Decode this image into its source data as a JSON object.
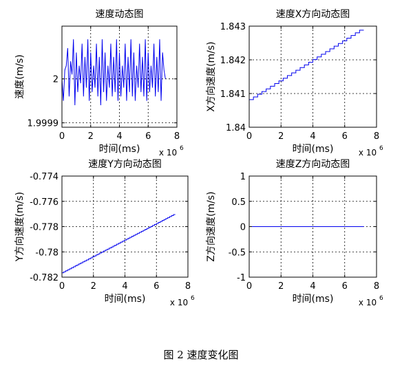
{
  "caption": "图 2  速度变化图",
  "chart_data": [
    {
      "type": "line",
      "title": "速度动态图",
      "xlabel": "时间(ms)",
      "ylabel": "速度(m/s)",
      "x_exponent": "x 10",
      "x_exponent_power": "6",
      "xlim": [
        0,
        8
      ],
      "ylim": [
        1.99989,
        2.00012
      ],
      "xticks": [
        0,
        2,
        4,
        6,
        8
      ],
      "xtick_labels": [
        "0",
        "2",
        "4",
        "6",
        "8"
      ],
      "yticks": [
        1.9999,
        2.0
      ],
      "ytick_labels": [
        "1.9999",
        "2"
      ],
      "grid": true,
      "color": "#0000ee",
      "series": [
        {
          "x": [
            0.0,
            0.1,
            0.2,
            0.3,
            0.4,
            0.5,
            0.6,
            0.7,
            0.8,
            0.9,
            1.0,
            1.1,
            1.2,
            1.3,
            1.4,
            1.5,
            1.6,
            1.7,
            1.8,
            1.9,
            2.0,
            2.1,
            2.2,
            2.3,
            2.4,
            2.5,
            2.6,
            2.7,
            2.8,
            2.9,
            3.0,
            3.1,
            3.2,
            3.3,
            3.4,
            3.5,
            3.6,
            3.7,
            3.8,
            3.9,
            4.0,
            4.1,
            4.2,
            4.3,
            4.4,
            4.5,
            4.6,
            4.7,
            4.8,
            4.9,
            5.0,
            5.1,
            5.2,
            5.3,
            5.4,
            5.5,
            5.6,
            5.7,
            5.8,
            5.9,
            6.0,
            6.1,
            6.2,
            6.3,
            6.4,
            6.5,
            6.6,
            6.7,
            6.8,
            6.9,
            7.0,
            7.1,
            7.2
          ],
          "y": [
            2.0,
            1.99995,
            2.00002,
            2.00003,
            2.00007,
            1.99996,
            2.00004,
            2.00001,
            2.00009,
            1.99994,
            2.00006,
            1.99997,
            2.00003,
            1.99999,
            2.00008,
            1.99996,
            2.00005,
            1.99998,
            2.00009,
            1.99995,
            2.00006,
            1.99997,
            2.00003,
            1.99998,
            2.00008,
            1.99996,
            2.00005,
            1.99994,
            2.00009,
            1.99997,
            2.00006,
            1.99995,
            2.00003,
            1.99998,
            2.00008,
            1.99996,
            2.00005,
            1.99997,
            2.00009,
            1.99995,
            2.00006,
            1.99996,
            2.00003,
            1.99998,
            2.00008,
            1.99995,
            2.00005,
            1.99997,
            2.00009,
            1.99996,
            2.00006,
            1.99995,
            2.00003,
            1.99998,
            2.00008,
            1.99997,
            2.00005,
            1.99996,
            2.00009,
            1.99995,
            2.00006,
            1.99997,
            2.00003,
            1.99998,
            2.00008,
            1.99996,
            2.00005,
            1.99997,
            2.00009,
            1.99995,
            2.00006,
            2.00002,
            2.0
          ]
        }
      ]
    },
    {
      "type": "line",
      "title": "速度X方向动态图",
      "xlabel": "时间(ms)",
      "ylabel": "X方向速度(m/s)",
      "x_exponent": "x 10",
      "x_exponent_power": "6",
      "xlim": [
        0,
        8
      ],
      "ylim": [
        1.84,
        1.843
      ],
      "xticks": [
        0,
        2,
        4,
        6,
        8
      ],
      "xtick_labels": [
        "0",
        "2",
        "4",
        "6",
        "8"
      ],
      "yticks": [
        1.84,
        1.841,
        1.842,
        1.843
      ],
      "ytick_labels": [
        "1.84",
        "1.841",
        "1.842",
        "1.843"
      ],
      "grid": true,
      "color": "#0000ee",
      "series": [
        {
          "x": [
            0.0,
            7.2
          ],
          "y": [
            1.84082,
            1.84288
          ],
          "steps": 27
        }
      ]
    },
    {
      "type": "line",
      "title": "速度Y方向动态图",
      "xlabel": "时间(ms)",
      "ylabel": "Y方向速度(m/s)",
      "x_exponent": "x 10",
      "x_exponent_power": "6",
      "xlim": [
        0,
        8
      ],
      "ylim": [
        -0.782,
        -0.774
      ],
      "xticks": [
        0,
        2,
        4,
        6,
        8
      ],
      "xtick_labels": [
        "0",
        "2",
        "4",
        "6",
        "8"
      ],
      "yticks": [
        -0.782,
        -0.78,
        -0.778,
        -0.776,
        -0.774
      ],
      "ytick_labels": [
        "-0.782",
        "-0.78",
        "-0.778",
        "-0.776",
        "-0.774"
      ],
      "grid": true,
      "color": "#0000ee",
      "series": [
        {
          "x": [
            0.0,
            7.2
          ],
          "y": [
            -0.78165,
            -0.77705
          ],
          "steps": 60
        }
      ]
    },
    {
      "type": "line",
      "title": "速度Z方向动态图",
      "xlabel": "时间(ms)",
      "ylabel": "Z方向速度(m/s)",
      "x_exponent": "x 10",
      "x_exponent_power": "6",
      "xlim": [
        0,
        8
      ],
      "ylim": [
        -1,
        1
      ],
      "xticks": [
        0,
        2,
        4,
        6,
        8
      ],
      "xtick_labels": [
        "0",
        "2",
        "4",
        "6",
        "8"
      ],
      "yticks": [
        -1,
        -0.5,
        0,
        0.5,
        1
      ],
      "ytick_labels": [
        "-1",
        "-0.5",
        "0",
        "0.5",
        "1"
      ],
      "grid": true,
      "color": "#0000ee",
      "series": [
        {
          "x": [
            0.0,
            7.2
          ],
          "y": [
            0.0,
            0.0
          ],
          "steps": 1
        }
      ]
    }
  ]
}
